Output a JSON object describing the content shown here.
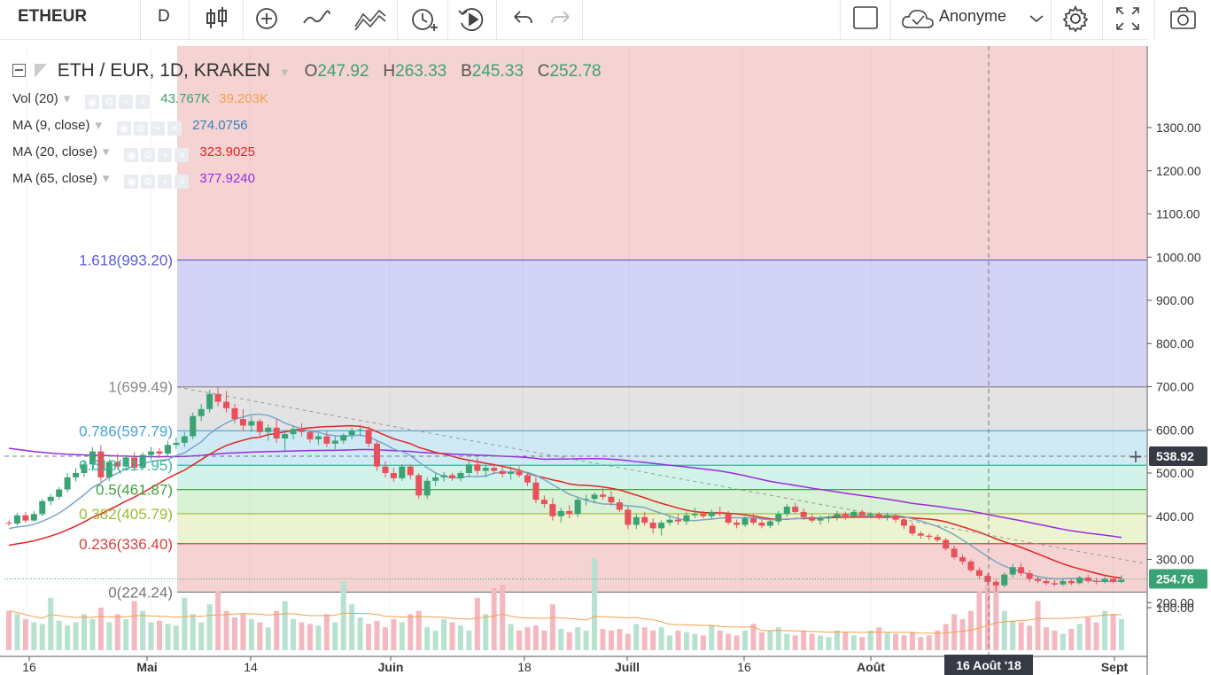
{
  "toolbar": {
    "symbol": "ETHEUR",
    "interval": "D",
    "user_label": "Anonyme"
  },
  "legend": {
    "pair": "ETH / EUR, 1D, KRAKEN",
    "o_label": "O",
    "o_value": "247.92",
    "h_label": "H",
    "h_value": "263.33",
    "b_label": "B",
    "b_value": "245.33",
    "c_label": "C",
    "c_value": "252.78",
    "indicators": [
      {
        "label": "Vol (20)",
        "values": [
          "43.767K",
          "39.203K"
        ],
        "colors": [
          "#3aa373",
          "#f5a04c"
        ]
      },
      {
        "label": "MA (9, close)",
        "values": [
          "274.0756"
        ],
        "colors": [
          "#3a7fb8"
        ]
      },
      {
        "label": "MA (20, close)",
        "values": [
          "323.9025"
        ],
        "colors": [
          "#e52222"
        ]
      },
      {
        "label": "MA (65, close)",
        "values": [
          "377.9240"
        ],
        "colors": [
          "#9a2be2"
        ]
      }
    ]
  },
  "crosshair": {
    "price_label": "538.92",
    "date_label": "16 Août '18"
  },
  "last_price_label": "254.76",
  "colors": {
    "up": "#3aa373",
    "down": "#e8505b",
    "vol_up": "#b7e2cf",
    "vol_down": "#f4b8bf",
    "ma9": "#79a6cb",
    "ma20": "#e52222",
    "ma65": "#9a2be2",
    "vol_ma": "#f5a04c"
  },
  "chart_data": {
    "type": "candlestick",
    "y_axis": {
      "min": 200,
      "max": 1300,
      "ticks": [
        "1300.00",
        "1200.00",
        "1100.00",
        "1000.00",
        "900.00",
        "800.00",
        "700.00",
        "600.00",
        "500.00",
        "400.00",
        "300.00",
        "200.00",
        "100.00"
      ]
    },
    "x_axis": {
      "ticks": [
        "16",
        "Mai",
        "14",
        "Juin",
        "18",
        "Juill",
        "16",
        "Août",
        "Sept"
      ]
    },
    "fib_levels": [
      {
        "ratio": 1.618,
        "price": 993.2,
        "label": "1.618(993.20)",
        "color": "#5b5bd6",
        "fill": "#d3d3f5"
      },
      {
        "ratio": 1,
        "price": 699.49,
        "label": "1(699.49)",
        "color": "#888888",
        "fill": "#e3e3e3"
      },
      {
        "ratio": 0.786,
        "price": 597.79,
        "label": "0.786(597.79)",
        "color": "#46a4d8",
        "fill": "#cfeaf5"
      },
      {
        "ratio": 0.618,
        "price": 517.95,
        "label": "0.618(517.95)",
        "color": "#38b59a",
        "fill": "#d2f3ea"
      },
      {
        "ratio": 0.5,
        "price": 461.87,
        "label": "0.5(461.87)",
        "color": "#42a33a",
        "fill": "#d9f1d4"
      },
      {
        "ratio": 0.382,
        "price": 405.79,
        "label": "0.382(405.79)",
        "color": "#9dbb33",
        "fill": "#ecf3d0"
      },
      {
        "ratio": 0.236,
        "price": 336.4,
        "label": "0.236(336.40)",
        "color": "#d93e3e",
        "fill": "#f5d3d3"
      },
      {
        "ratio": 0,
        "price": 224.24,
        "label": "0(224.24)",
        "color": "#777777",
        "fill": "#f5d3d3"
      }
    ],
    "candles": [
      [
        385,
        390,
        378,
        383
      ],
      [
        383,
        408,
        378,
        402
      ],
      [
        402,
        410,
        385,
        390
      ],
      [
        390,
        412,
        387,
        405
      ],
      [
        405,
        440,
        400,
        435
      ],
      [
        435,
        452,
        425,
        445
      ],
      [
        445,
        468,
        438,
        462
      ],
      [
        462,
        500,
        455,
        490
      ],
      [
        490,
        512,
        480,
        500
      ],
      [
        500,
        530,
        490,
        520
      ],
      [
        520,
        560,
        505,
        550
      ],
      [
        550,
        565,
        480,
        490
      ],
      [
        490,
        532,
        482,
        526
      ],
      [
        526,
        545,
        510,
        515
      ],
      [
        515,
        542,
        505,
        536
      ],
      [
        536,
        548,
        505,
        512
      ],
      [
        512,
        548,
        508,
        542
      ],
      [
        542,
        560,
        530,
        550
      ],
      [
        550,
        558,
        535,
        545
      ],
      [
        545,
        575,
        538,
        565
      ],
      [
        565,
        582,
        555,
        570
      ],
      [
        570,
        595,
        560,
        585
      ],
      [
        585,
        640,
        578,
        632
      ],
      [
        632,
        660,
        620,
        648
      ],
      [
        648,
        692,
        640,
        683
      ],
      [
        683,
        700,
        655,
        665
      ],
      [
        665,
        690,
        640,
        650
      ],
      [
        650,
        660,
        615,
        625
      ],
      [
        625,
        648,
        598,
        610
      ],
      [
        610,
        632,
        595,
        620
      ],
      [
        620,
        625,
        580,
        595
      ],
      [
        595,
        612,
        575,
        605
      ],
      [
        605,
        625,
        570,
        580
      ],
      [
        580,
        600,
        548,
        590
      ],
      [
        590,
        610,
        578,
        602
      ],
      [
        602,
        615,
        585,
        595
      ],
      [
        595,
        600,
        570,
        578
      ],
      [
        578,
        592,
        565,
        585
      ],
      [
        585,
        598,
        560,
        568
      ],
      [
        568,
        585,
        555,
        575
      ],
      [
        575,
        592,
        568,
        588
      ],
      [
        588,
        605,
        578,
        598
      ],
      [
        598,
        612,
        585,
        600
      ],
      [
        600,
        608,
        560,
        568
      ],
      [
        568,
        575,
        505,
        515
      ],
      [
        515,
        528,
        490,
        500
      ],
      [
        500,
        512,
        480,
        488
      ],
      [
        488,
        520,
        482,
        515
      ],
      [
        515,
        520,
        485,
        495
      ],
      [
        495,
        500,
        440,
        448
      ],
      [
        448,
        490,
        440,
        482
      ],
      [
        482,
        500,
        470,
        490
      ],
      [
        490,
        502,
        480,
        495
      ],
      [
        495,
        500,
        482,
        488
      ],
      [
        488,
        505,
        480,
        500
      ],
      [
        500,
        528,
        490,
        520
      ],
      [
        520,
        535,
        495,
        505
      ],
      [
        505,
        518,
        490,
        512
      ],
      [
        512,
        522,
        498,
        505
      ],
      [
        505,
        515,
        490,
        498
      ],
      [
        498,
        510,
        485,
        502
      ],
      [
        502,
        515,
        490,
        495
      ],
      [
        495,
        500,
        470,
        478
      ],
      [
        478,
        490,
        430,
        438
      ],
      [
        438,
        448,
        420,
        428
      ],
      [
        428,
        442,
        390,
        400
      ],
      [
        400,
        420,
        385,
        412
      ],
      [
        412,
        425,
        395,
        405
      ],
      [
        405,
        445,
        398,
        438
      ],
      [
        438,
        450,
        425,
        440
      ],
      [
        440,
        455,
        430,
        450
      ],
      [
        450,
        465,
        438,
        445
      ],
      [
        445,
        458,
        425,
        432
      ],
      [
        432,
        440,
        410,
        415
      ],
      [
        415,
        422,
        370,
        380
      ],
      [
        380,
        405,
        370,
        398
      ],
      [
        398,
        410,
        378,
        385
      ],
      [
        385,
        395,
        360,
        372
      ],
      [
        372,
        390,
        355,
        385
      ],
      [
        385,
        402,
        378,
        392
      ],
      [
        392,
        405,
        380,
        388
      ],
      [
        388,
        410,
        380,
        402
      ],
      [
        402,
        420,
        395,
        405
      ],
      [
        405,
        412,
        395,
        400
      ],
      [
        400,
        415,
        392,
        410
      ],
      [
        410,
        422,
        400,
        405
      ],
      [
        405,
        412,
        380,
        385
      ],
      [
        385,
        392,
        372,
        380
      ],
      [
        380,
        400,
        375,
        395
      ],
      [
        395,
        405,
        380,
        385
      ],
      [
        385,
        392,
        372,
        378
      ],
      [
        378,
        392,
        372,
        388
      ],
      [
        388,
        412,
        380,
        405
      ],
      [
        405,
        428,
        398,
        422
      ],
      [
        422,
        432,
        405,
        410
      ],
      [
        410,
        418,
        392,
        398
      ],
      [
        398,
        405,
        385,
        390
      ],
      [
        390,
        402,
        380,
        395
      ],
      [
        395,
        402,
        385,
        398
      ],
      [
        398,
        412,
        390,
        405
      ],
      [
        405,
        410,
        392,
        400
      ],
      [
        400,
        415,
        395,
        410
      ],
      [
        410,
        415,
        398,
        402
      ],
      [
        402,
        410,
        395,
        405
      ],
      [
        405,
        410,
        392,
        398
      ],
      [
        398,
        408,
        390,
        402
      ],
      [
        402,
        405,
        385,
        392
      ],
      [
        392,
        398,
        370,
        378
      ],
      [
        378,
        385,
        355,
        360
      ],
      [
        360,
        365,
        348,
        355
      ],
      [
        355,
        360,
        345,
        352
      ],
      [
        352,
        358,
        340,
        345
      ],
      [
        345,
        350,
        320,
        325
      ],
      [
        325,
        332,
        300,
        305
      ],
      [
        305,
        312,
        288,
        295
      ],
      [
        295,
        300,
        270,
        275
      ],
      [
        275,
        282,
        255,
        262
      ],
      [
        262,
        268,
        240,
        248
      ],
      [
        248,
        255,
        225,
        240
      ],
      [
        240,
        270,
        235,
        265
      ],
      [
        265,
        290,
        258,
        282
      ],
      [
        282,
        292,
        262,
        268
      ],
      [
        268,
        275,
        248,
        255
      ],
      [
        255,
        262,
        245,
        250
      ],
      [
        250,
        258,
        240,
        245
      ],
      [
        245,
        252,
        238,
        242
      ],
      [
        242,
        255,
        238,
        250
      ],
      [
        250,
        255,
        240,
        245
      ],
      [
        245,
        262,
        242,
        258
      ],
      [
        258,
        265,
        245,
        250
      ],
      [
        250,
        258,
        242,
        248
      ],
      [
        248,
        260,
        245,
        255
      ],
      [
        255,
        262,
        245,
        248
      ],
      [
        248,
        263,
        245,
        253
      ]
    ],
    "volumes": [
      120,
      110,
      95,
      85,
      80,
      160,
      90,
      75,
      85,
      110,
      95,
      130,
      85,
      110,
      95,
      150,
      120,
      85,
      90,
      80,
      75,
      160,
      110,
      85,
      140,
      180,
      120,
      100,
      110,
      95,
      85,
      70,
      120,
      150,
      95,
      85,
      80,
      75,
      110,
      85,
      210,
      140,
      100,
      80,
      90,
      70,
      95,
      85,
      110,
      120,
      70,
      60,
      95,
      85,
      75,
      60,
      160,
      110,
      190,
      200,
      80,
      60,
      70,
      75,
      60,
      140,
      65,
      55,
      70,
      60,
      280,
      65,
      60,
      65,
      50,
      80,
      70,
      60,
      70,
      45,
      60,
      55,
      50,
      45,
      75,
      60,
      50,
      45,
      60,
      80,
      55,
      60,
      70,
      50,
      45,
      60,
      50,
      45,
      40,
      60,
      55,
      45,
      40,
      60,
      70,
      55,
      50,
      45,
      55,
      40,
      45,
      60,
      80,
      110,
      95,
      120,
      180,
      200,
      210,
      120,
      90,
      85,
      75,
      150,
      70,
      60,
      50,
      65,
      80,
      100,
      85
    ]
  }
}
